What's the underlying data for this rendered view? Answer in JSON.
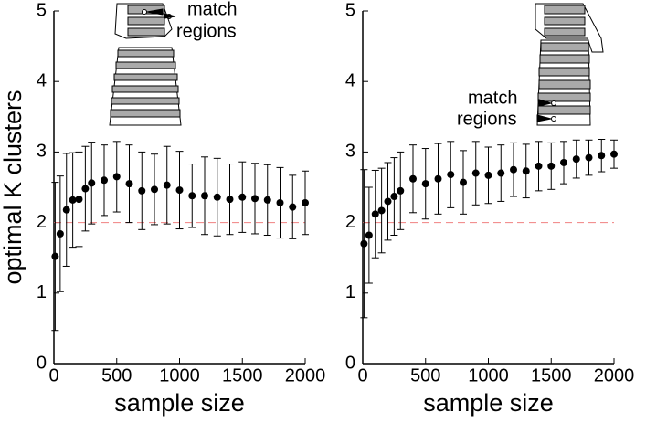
{
  "chart_data": [
    {
      "type": "errorbar",
      "y_label": "optimal K clusters",
      "x_label": "sample size",
      "annotation": [
        "match",
        "regions"
      ],
      "x": [
        10,
        50,
        100,
        150,
        200,
        250,
        300,
        400,
        500,
        600,
        700,
        800,
        900,
        1000,
        1100,
        1200,
        1300,
        1400,
        1500,
        1600,
        1700,
        1800,
        1900,
        2000
      ],
      "series": [
        {
          "color": "#000000",
          "values": [
            1.52,
            1.84,
            2.18,
            2.32,
            2.33,
            2.48,
            2.56,
            2.6,
            2.65,
            2.55,
            2.45,
            2.47,
            2.53,
            2.46,
            2.38,
            2.38,
            2.36,
            2.33,
            2.36,
            2.34,
            2.32,
            2.28,
            2.22,
            2.28
          ],
          "errors": [
            1.05,
            0.82,
            0.8,
            0.67,
            0.67,
            0.6,
            0.58,
            0.5,
            0.5,
            0.55,
            0.55,
            0.5,
            0.55,
            0.55,
            0.45,
            0.55,
            0.55,
            0.5,
            0.5,
            0.5,
            0.5,
            0.5,
            0.45,
            0.45
          ]
        }
      ],
      "reference_line": {
        "value": 2,
        "color": "#f08080"
      },
      "xlim": [
        0,
        2000
      ],
      "xticks": [
        0,
        500,
        1000,
        1500,
        2000
      ],
      "ylim": [
        0,
        5
      ],
      "yticks": [
        0,
        1,
        2,
        3,
        4,
        5
      ]
    },
    {
      "type": "errorbar",
      "x_label": "sample size",
      "annotation": [
        "match",
        "regions"
      ],
      "x": [
        10,
        50,
        100,
        150,
        200,
        250,
        300,
        400,
        500,
        600,
        700,
        800,
        900,
        1000,
        1100,
        1200,
        1300,
        1400,
        1500,
        1600,
        1700,
        1800,
        1900,
        2000
      ],
      "series": [
        {
          "color": "#000000",
          "values": [
            1.7,
            1.82,
            2.12,
            2.17,
            2.3,
            2.37,
            2.45,
            2.62,
            2.55,
            2.62,
            2.68,
            2.57,
            2.7,
            2.67,
            2.7,
            2.75,
            2.73,
            2.8,
            2.8,
            2.85,
            2.9,
            2.92,
            2.95,
            2.97
          ],
          "errors": [
            1.05,
            0.68,
            0.62,
            0.6,
            0.55,
            0.55,
            0.55,
            0.48,
            0.5,
            0.5,
            0.47,
            0.45,
            0.45,
            0.4,
            0.4,
            0.38,
            0.38,
            0.35,
            0.33,
            0.3,
            0.27,
            0.25,
            0.23,
            0.2
          ]
        }
      ],
      "reference_line": {
        "value": 2,
        "color": "#f08080"
      },
      "xlim": [
        0,
        2000
      ],
      "xticks": [
        0,
        500,
        1000,
        1500,
        2000
      ],
      "ylim": [
        0,
        5
      ],
      "yticks": [
        0,
        1,
        2,
        3,
        4,
        5
      ]
    }
  ]
}
